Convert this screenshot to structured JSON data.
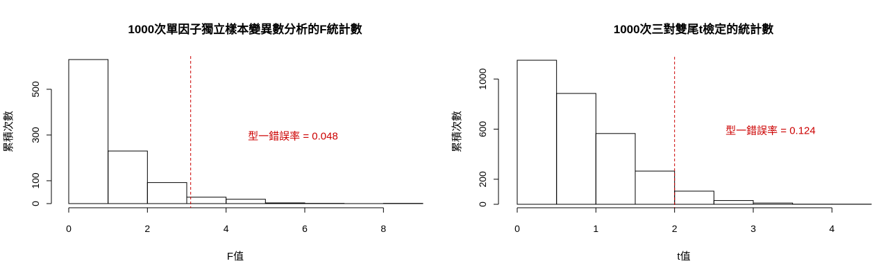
{
  "chart_data": [
    {
      "type": "bar",
      "title": "1000次單因子獨立樣本變異數分析的F統計數",
      "xlabel": "F值",
      "ylabel": "累積次數",
      "bins": [
        {
          "x0": 0,
          "x1": 1,
          "count": 630
        },
        {
          "x0": 1,
          "x1": 2,
          "count": 230
        },
        {
          "x0": 2,
          "x1": 3,
          "count": 92
        },
        {
          "x0": 3,
          "x1": 4,
          "count": 28
        },
        {
          "x0": 4,
          "x1": 5,
          "count": 19
        },
        {
          "x0": 5,
          "x1": 6,
          "count": 3
        },
        {
          "x0": 6,
          "x1": 7,
          "count": 1
        },
        {
          "x0": 7,
          "x1": 8,
          "count": 0
        },
        {
          "x0": 8,
          "x1": 9,
          "count": 1
        }
      ],
      "xlim": [
        0,
        9
      ],
      "ylim": [
        0,
        630
      ],
      "x_ticks": [
        0,
        2,
        4,
        6,
        8
      ],
      "y_ticks": [
        0,
        100,
        300,
        500
      ],
      "critical_value": 3.1,
      "critical_line_color": "#cc0000",
      "annotation": {
        "text": "型一錯誤率 =  0.048",
        "x": 5.7,
        "y": 295,
        "color": "#cc0000"
      },
      "grid": false
    },
    {
      "type": "bar",
      "title": "1000次三對雙尾t檢定的統計數",
      "xlabel": "t值",
      "ylabel": "累積次數",
      "bins": [
        {
          "x0": 0,
          "x1": 0.5,
          "count": 1150
        },
        {
          "x0": 0.5,
          "x1": 1,
          "count": 885
        },
        {
          "x0": 1,
          "x1": 1.5,
          "count": 565
        },
        {
          "x0": 1.5,
          "x1": 2,
          "count": 265
        },
        {
          "x0": 2,
          "x1": 2.5,
          "count": 105
        },
        {
          "x0": 2.5,
          "x1": 3,
          "count": 30
        },
        {
          "x0": 3,
          "x1": 3.5,
          "count": 10
        },
        {
          "x0": 3.5,
          "x1": 4,
          "count": 1
        },
        {
          "x0": 4,
          "x1": 4.5,
          "count": 1
        }
      ],
      "xlim": [
        0,
        4.5
      ],
      "ylim": [
        0,
        1150
      ],
      "x_ticks": [
        0,
        1,
        2,
        3,
        4
      ],
      "y_ticks": [
        0,
        200,
        600,
        1000
      ],
      "critical_value": 2.0,
      "critical_line_color": "#cc0000",
      "annotation": {
        "text": "型一錯誤率 =  0.124",
        "x": 3.22,
        "y": 590,
        "color": "#cc0000"
      },
      "grid": false
    }
  ]
}
